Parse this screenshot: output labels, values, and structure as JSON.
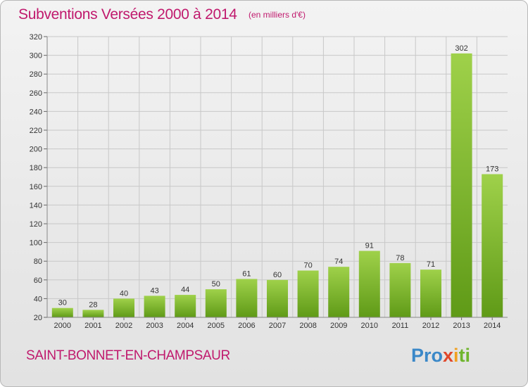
{
  "header": {
    "title": "Subventions Versées 2000 à 2014",
    "subtitle": "(en milliers d'€)"
  },
  "footer": {
    "city": "SAINT-BONNET-EN-CHAMPSAUR",
    "logo_parts": [
      "Pro",
      "x",
      "i",
      "ti"
    ]
  },
  "colors": {
    "title": "#c0196d",
    "bar_light": "#9fd14a",
    "bar_dark": "#5f9a17",
    "grid": "#c8c8c8"
  },
  "chart_data": {
    "type": "bar",
    "title": "Subventions Versées 2000 à 2014",
    "subtitle": "(en milliers d'€)",
    "categories": [
      "2000",
      "2001",
      "2002",
      "2003",
      "2004",
      "2005",
      "2006",
      "2007",
      "2008",
      "2009",
      "2010",
      "2011",
      "2012",
      "2013",
      "2014"
    ],
    "values": [
      30,
      28,
      40,
      43,
      44,
      50,
      61,
      60,
      70,
      74,
      91,
      78,
      71,
      302,
      173
    ],
    "ylim": [
      20,
      320
    ],
    "yticks": [
      20,
      40,
      60,
      80,
      100,
      120,
      140,
      160,
      180,
      200,
      220,
      240,
      260,
      280,
      300,
      320
    ],
    "grid": true,
    "xlabel": "",
    "ylabel": ""
  }
}
